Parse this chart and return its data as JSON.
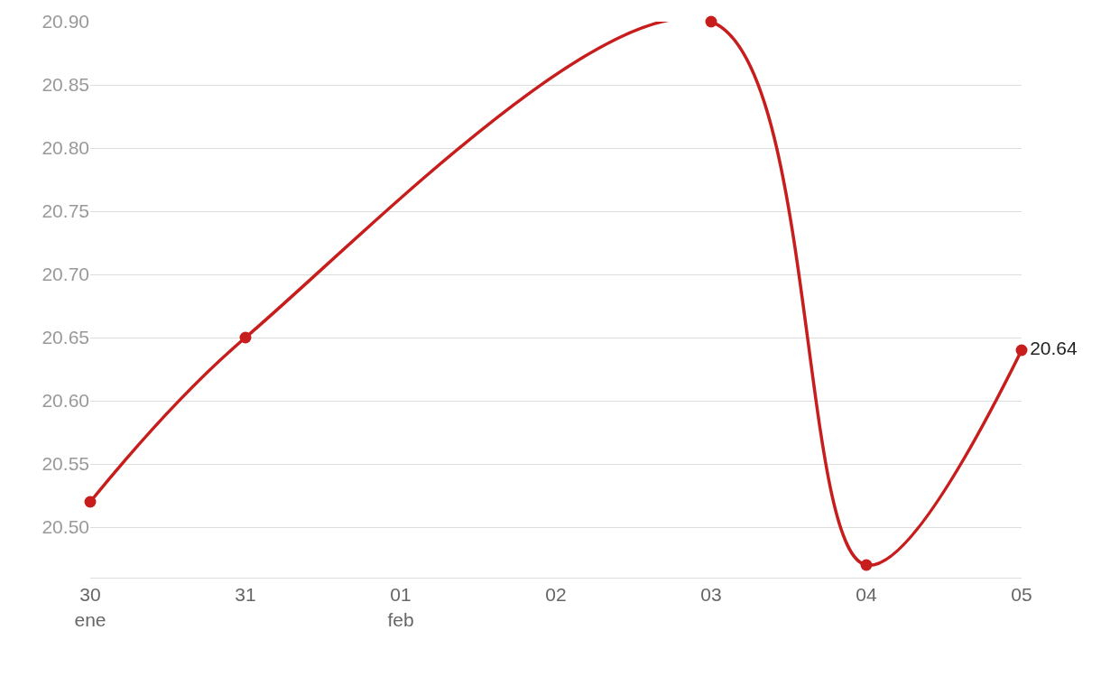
{
  "chart_data": {
    "type": "line",
    "x": [
      "--01-30",
      "--01-31",
      "--02-03",
      "--02-04",
      "--02-05"
    ],
    "series": [
      {
        "color": "#c71e1d",
        "values": [
          20.52,
          20.65,
          20.9,
          20.47,
          20.64
        ],
        "value_labels": [
          null,
          null,
          null,
          null,
          "20.64"
        ]
      }
    ],
    "xlim": [
      "--01-30",
      "--02-05"
    ],
    "xticks": [
      {
        "value": "--01-30",
        "label": "30\nene"
      },
      {
        "value": "--01-31",
        "label": "31"
      },
      {
        "value": "--02-01",
        "label": "01\nfeb"
      },
      {
        "value": "--02-02",
        "label": "02"
      },
      {
        "value": "--02-03",
        "label": "03"
      },
      {
        "value": "--02-04",
        "label": "04"
      },
      {
        "value": "--02-05",
        "label": "05"
      }
    ],
    "yticks": [
      {
        "value": 20.5,
        "label": "20.50"
      },
      {
        "value": 20.55,
        "label": "20.55"
      },
      {
        "value": 20.6,
        "label": "20.60"
      },
      {
        "value": 20.65,
        "label": "20.65"
      },
      {
        "value": 20.7,
        "label": "20.70"
      },
      {
        "value": 20.75,
        "label": "20.75"
      },
      {
        "value": 20.8,
        "label": "20.80"
      },
      {
        "value": 20.85,
        "label": "20.85"
      },
      {
        "value": 20.9,
        "label": "20.90"
      }
    ],
    "ylim": [
      20.46,
      20.9
    ],
    "grid": "y",
    "marker": "circle",
    "line_style": "solid"
  }
}
